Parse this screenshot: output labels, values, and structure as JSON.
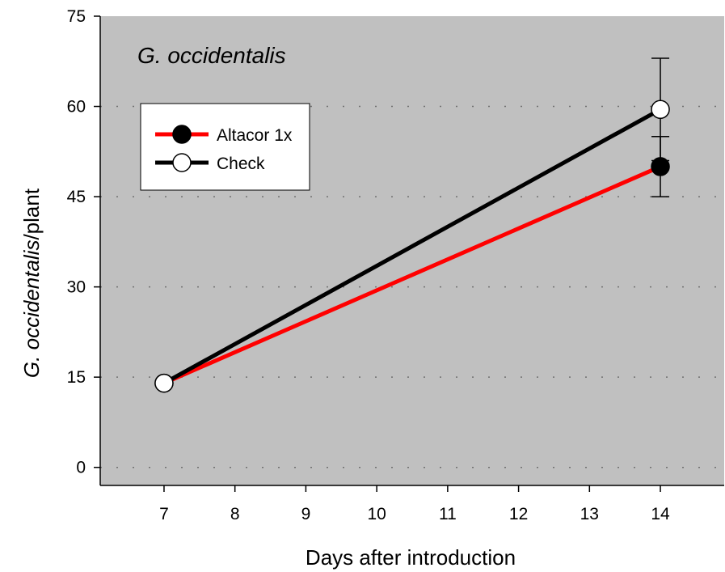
{
  "chart_data": {
    "type": "line",
    "title": "G. occidentalis",
    "xlabel": "Days after introduction",
    "ylabel_italic": "G. occidentalis",
    "ylabel_suffix": "/plant",
    "xlim": [
      6.1,
      14.9
    ],
    "ylim": [
      -3,
      75
    ],
    "x_ticks": [
      7,
      8,
      9,
      10,
      11,
      12,
      13,
      14
    ],
    "y_ticks": [
      0,
      15,
      30,
      45,
      60,
      75
    ],
    "grid": "horizontal dotted",
    "background": "#c0c0c0",
    "legend_position": "top-left",
    "series": [
      {
        "name": "Altacor 1x",
        "color": "#ff0000",
        "marker": "filled-circle",
        "marker_fill": "#000000",
        "x": [
          7,
          14
        ],
        "y": [
          14,
          50
        ],
        "error": [
          null,
          5
        ]
      },
      {
        "name": "Check",
        "color": "#000000",
        "marker": "open-circle",
        "marker_fill": "#ffffff",
        "x": [
          7,
          14
        ],
        "y": [
          14,
          59.5
        ],
        "error": [
          null,
          8.5
        ]
      }
    ]
  }
}
